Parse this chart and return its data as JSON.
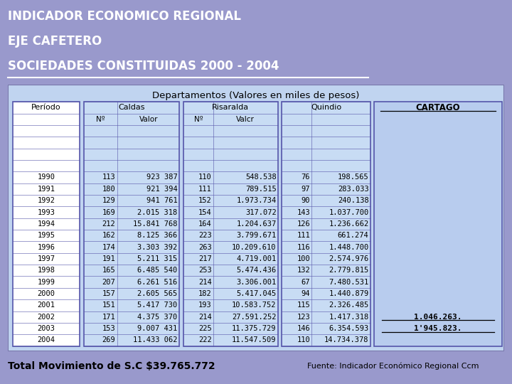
{
  "title_lines": [
    "INDICADOR ECONOMICO REGIONAL",
    "EJE CAFETERO",
    "SOCIEDADES CONSTITUIDAS 2000 - 2004"
  ],
  "title_bg": "#6b6bcc",
  "title_color": "#ffffff",
  "subtitle": "Departamentos (Valores en miles de pesos)",
  "footer_left": "Total Movimiento de S.C $39.765.772",
  "footer_right": "Fuente: Indicador Económico Regional Ccm",
  "outer_bg": "#9999cc",
  "table_outer_bg": "#aaaacc",
  "table_inner_bg": "#c0d4f0",
  "periodo_bg": "#ffffff",
  "data_col_bg": "#c8dcf4",
  "cartago_bg": "#b8ccee",
  "periods": [
    "",
    "",
    "",
    "1990",
    "1991",
    "1992",
    "1993",
    "1994",
    "1995",
    "1996",
    "1997",
    "1998",
    "1999",
    "2000",
    "2001",
    "2002",
    "2003",
    "2004"
  ],
  "caldas_n": [
    "",
    "",
    "",
    "113",
    "180",
    "129",
    "169",
    "212",
    "162",
    "174",
    "191",
    "165",
    "207",
    "157",
    "151",
    "171",
    "153",
    "269"
  ],
  "caldas_v": [
    "",
    "",
    "",
    "923 387",
    "921 394",
    "941 761",
    "2.015 318",
    "15.841 768",
    "8.125 366",
    "3.303 392",
    "5.211 315",
    "6.485 540",
    "6.261 516",
    "2.605 565",
    "5.417 730",
    "4.375 370",
    "9.007 431",
    "11.433 062"
  ],
  "risaralda_n": [
    "",
    "",
    "",
    "110",
    "111",
    "152",
    "154",
    "164",
    "223",
    "263",
    "217",
    "253",
    "214",
    "182",
    "193",
    "214",
    "225",
    "222"
  ],
  "risaralda_v": [
    "",
    "",
    "",
    "548.538",
    "789.515",
    "1.973.734",
    "317.072",
    "1.204.637",
    "3.799.671",
    "10.209.610",
    "4.719.001",
    "5.474.436",
    "3.306.001",
    "5.417.045",
    "10.583.752",
    "27.591.252",
    "11.375.729",
    "11.547.509"
  ],
  "quindio_n": [
    "",
    "",
    "",
    "76",
    "97",
    "90",
    "143",
    "126",
    "111",
    "116",
    "100",
    "132",
    "67",
    "94",
    "115",
    "123",
    "146",
    "110"
  ],
  "quindio_v": [
    "",
    "",
    "",
    "198.565",
    "283.033",
    "240.138",
    "1.037.700",
    "1.236.662",
    "661.274",
    "1.448.700",
    "2.574.976",
    "2.779.815",
    "7.480.531",
    "1.440.879",
    "2.326.485",
    "1.417.318",
    "6.354.593",
    "14.734.378"
  ],
  "cartago_row15": "1.046.263.",
  "cartago_row16": "1'945.823.",
  "n_header_rows": 3,
  "n_data_rows": 18
}
